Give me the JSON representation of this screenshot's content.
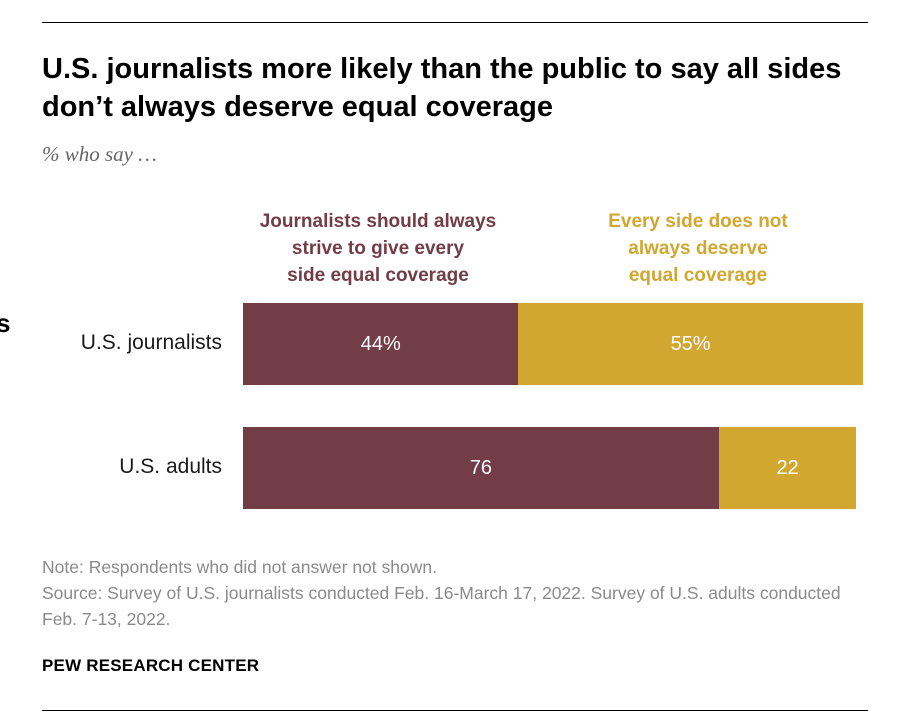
{
  "title": "U.S. journalists more likely than the public to say all sides don’t always deserve equal coverage",
  "subtitle": "% who say …",
  "stray_glyph": "s",
  "note": "Note: Respondents who did not answer not shown.",
  "source": "Source: Survey of U.S. journalists conducted Feb. 16-March 17, 2022. Survey of U.S. adults conducted Feb. 7-13, 2022.",
  "credit": "PEW RESEARCH CENTER",
  "chart_data": {
    "type": "bar",
    "orientation": "horizontal",
    "stacked": true,
    "title": "U.S. journalists more likely than the public to say all sides don’t always deserve equal coverage",
    "subtitle": "% who say …",
    "categories": [
      "U.S. journalists",
      "U.S. adults"
    ],
    "xlim": [
      0,
      100
    ],
    "series": [
      {
        "name": "Journalists should always strive to give every side equal coverage",
        "legend_lines": "Journalists should always\nstrive to give every\nside equal coverage",
        "color": "#733d47",
        "values": [
          44,
          76
        ],
        "labels": [
          "44%",
          "76"
        ]
      },
      {
        "name": "Every side does not always deserve equal coverage",
        "legend_lines": "Every side does not\nalways deserve\nequal coverage",
        "color": "#d1a730",
        "values": [
          55,
          22
        ],
        "labels": [
          "55%",
          "22"
        ]
      }
    ]
  }
}
